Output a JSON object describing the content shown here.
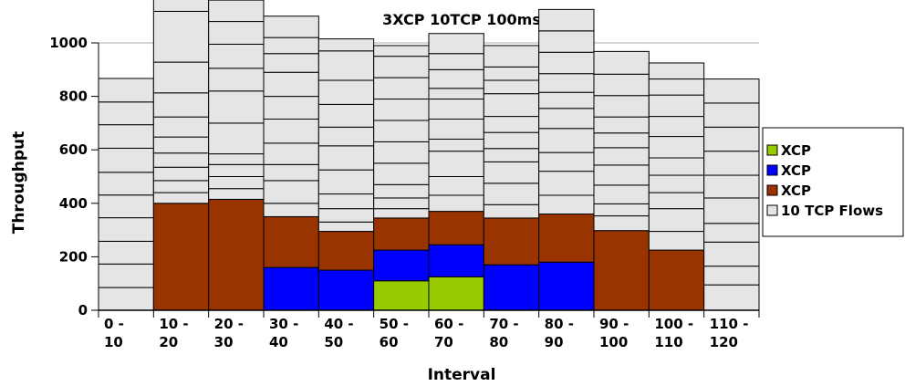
{
  "chart_data": {
    "type": "bar",
    "stacked": true,
    "title": "3XCP 10TCP 100ms",
    "xlabel": "Interval",
    "ylabel": "Throughput",
    "ylim": [
      0,
      1000
    ],
    "yticks": [
      0,
      200,
      400,
      600,
      800,
      1000
    ],
    "grid": false,
    "legend_position": "right",
    "categories": [
      [
        "0 -",
        "10"
      ],
      [
        "10 -",
        "20"
      ],
      [
        "20 -",
        "30"
      ],
      [
        "30 -",
        "40"
      ],
      [
        "40 -",
        "50"
      ],
      [
        "50 -",
        "60"
      ],
      [
        "60 -",
        "70"
      ],
      [
        "70 -",
        "80"
      ],
      [
        "80 -",
        "90"
      ],
      [
        "90 -",
        "100"
      ],
      [
        "100 -",
        "110"
      ],
      [
        "110 -",
        "120"
      ]
    ],
    "series": [
      {
        "name": "XCP",
        "color": "#99cc00",
        "values": [
          0,
          0,
          0,
          0,
          0,
          110,
          125,
          0,
          0,
          0,
          0,
          0
        ]
      },
      {
        "name": "XCP",
        "color": "#0000ff",
        "values": [
          0,
          0,
          0,
          160,
          150,
          115,
          120,
          170,
          180,
          0,
          0,
          0
        ]
      },
      {
        "name": "XCP",
        "color": "#993300",
        "values": [
          0,
          400,
          415,
          190,
          145,
          120,
          125,
          175,
          180,
          298,
          225,
          0
        ]
      },
      {
        "name": "10 TCP Flows",
        "color": "#e5e5e5",
        "stacks": [
          [
            85,
            88,
            85,
            88,
            85,
            85,
            90,
            88,
            85,
            88
          ],
          [
            40,
            45,
            50,
            53,
            60,
            75,
            90,
            115,
            190,
            80
          ],
          [
            40,
            45,
            45,
            40,
            115,
            120,
            85,
            90,
            85,
            80
          ],
          [
            50,
            85,
            60,
            80,
            90,
            85,
            90,
            70,
            60,
            80
          ],
          [
            35,
            50,
            55,
            90,
            90,
            70,
            85,
            90,
            110,
            45
          ],
          [
            35,
            40,
            50,
            80,
            80,
            80,
            80,
            80,
            80,
            40
          ],
          [
            60,
            70,
            95,
            45,
            75,
            75,
            40,
            70,
            60,
            75
          ],
          [
            50,
            80,
            80,
            50,
            60,
            60,
            85,
            50,
            50,
            80
          ],
          [
            70,
            90,
            70,
            90,
            75,
            60,
            70,
            80,
            80,
            80
          ],
          [
            55,
            45,
            70,
            75,
            65,
            55,
            60,
            80,
            80,
            85
          ],
          [
            70,
            85,
            60,
            65,
            65,
            80,
            75,
            80,
            60,
            60
          ],
          [
            95,
            70,
            90,
            70,
            95,
            85,
            90,
            90,
            90,
            90
          ]
        ]
      }
    ],
    "legend": [
      "XCP",
      "XCP",
      "XCP",
      "10 TCP Flows"
    ]
  }
}
